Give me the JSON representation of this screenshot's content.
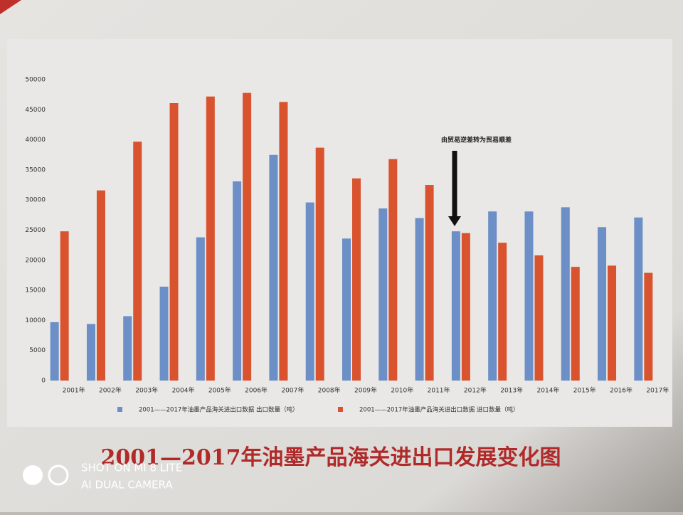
{
  "chart_data": {
    "type": "bar",
    "title": "2001—2017年油墨产品海关进出口发展变化图",
    "annotation": "由贸易逆差转为贸易顺差",
    "categories": [
      "2001年",
      "2002年",
      "2003年",
      "2004年",
      "2005年",
      "2006年",
      "2007年",
      "2008年",
      "2009年",
      "2010年",
      "2011年",
      "2012年",
      "2013年",
      "2014年",
      "2015年",
      "2016年",
      "2017年"
    ],
    "series": [
      {
        "name": "2001——2017年油墨产品海关进出口数据 出口数量（吨）",
        "color": "#6b8fc6",
        "values": [
          9700,
          9400,
          10700,
          15600,
          23800,
          33100,
          37500,
          29600,
          23600,
          28600,
          27000,
          24800,
          28100,
          28100,
          28800,
          25500,
          27100
        ]
      },
      {
        "name": "2001——2017年油墨产品海关进出口数据 进口数量（吨）",
        "color": "#d9532f",
        "values": [
          24800,
          31600,
          39700,
          46100,
          47200,
          47800,
          46300,
          38700,
          33600,
          36800,
          32500,
          24500,
          22900,
          20800,
          18900,
          19100,
          17900
        ]
      }
    ],
    "ylim": [
      0,
      50000
    ],
    "yticks": [
      0,
      5000,
      10000,
      15000,
      20000,
      25000,
      30000,
      35000,
      40000,
      45000,
      50000
    ],
    "watermark": [
      "SHOT ON MI 8 LITE",
      "AI DUAL CAMERA"
    ]
  }
}
